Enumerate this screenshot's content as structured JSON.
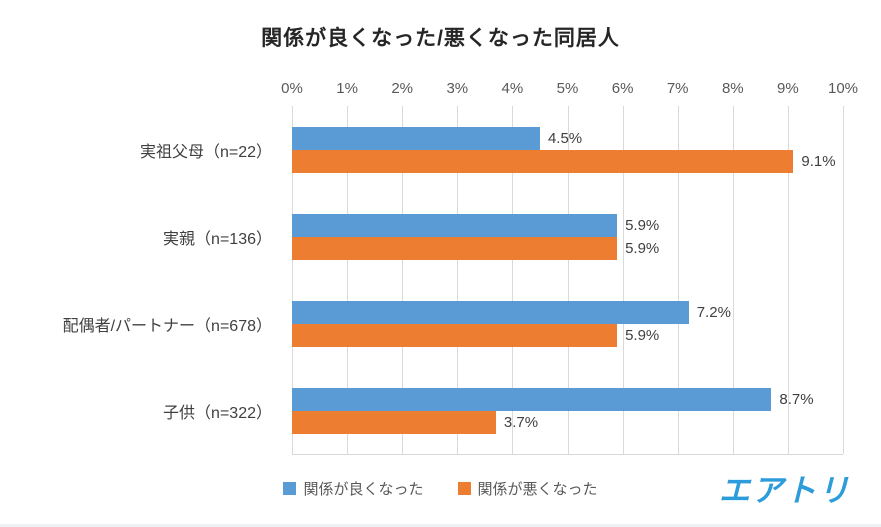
{
  "chart": {
    "title": "関係が良くなった/悪くなった同居人"
  },
  "chart_data": {
    "type": "bar",
    "orientation": "horizontal",
    "title": "関係が良くなった/悪くなった同居人",
    "categories": [
      "実祖父母（n=22）",
      "実親（n=136）",
      "配偶者/パートナー（n=678）",
      "子供（n=322）"
    ],
    "series": [
      {
        "name": "関係が良くなった",
        "color": "#5b9bd5",
        "values": [
          4.5,
          5.9,
          7.2,
          8.7
        ]
      },
      {
        "name": "関係が悪くなった",
        "color": "#ed7d31",
        "values": [
          9.1,
          5.9,
          5.9,
          3.7
        ]
      }
    ],
    "value_suffix": "%",
    "xlim": [
      0,
      10
    ],
    "x_ticks": [
      "0%",
      "1%",
      "2%",
      "3%",
      "4%",
      "5%",
      "6%",
      "7%",
      "8%",
      "9%",
      "10%"
    ],
    "grid": true,
    "data_labels": true,
    "legend_position": "bottom"
  },
  "footer": {
    "logo_text": "エアトリ"
  }
}
